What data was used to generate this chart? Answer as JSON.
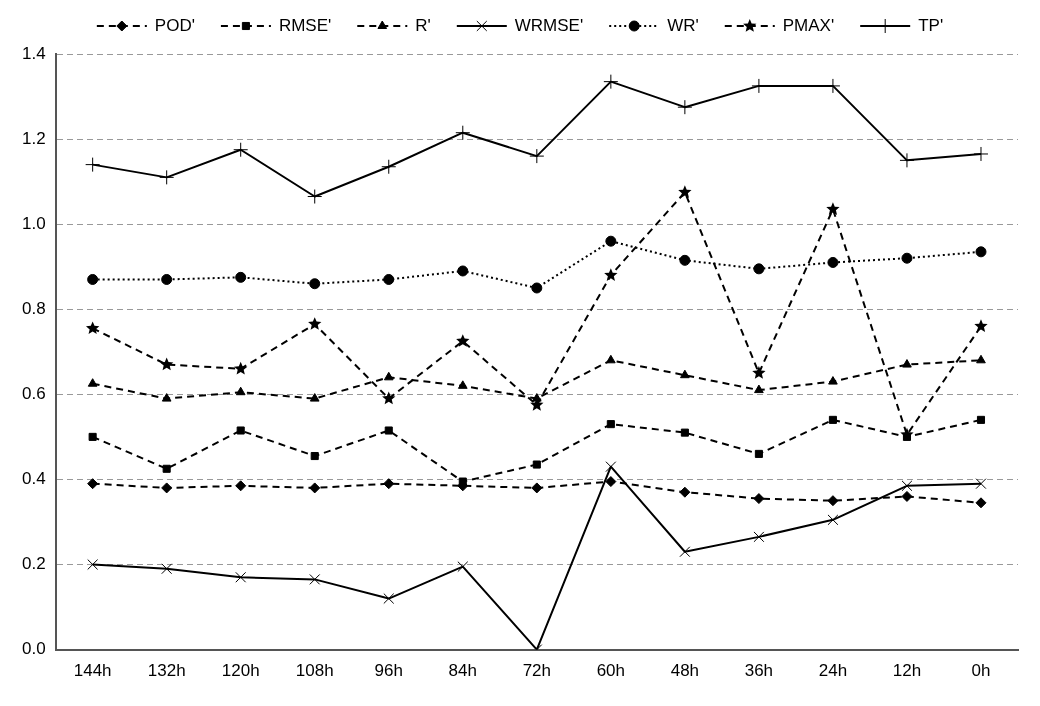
{
  "chart_data": {
    "type": "line",
    "categories": [
      "144h",
      "132h",
      "120h",
      "108h",
      "96h",
      "84h",
      "72h",
      "60h",
      "48h",
      "36h",
      "24h",
      "12h",
      "0h"
    ],
    "series": [
      {
        "name": "POD'",
        "color": "#000000",
        "marker": "diamond",
        "line_style": "dashed",
        "values": [
          0.39,
          0.38,
          0.385,
          0.38,
          0.39,
          0.385,
          0.38,
          0.395,
          0.37,
          0.355,
          0.35,
          0.36,
          0.345
        ]
      },
      {
        "name": "RMSE'",
        "color": "#000000",
        "marker": "square",
        "line_style": "dashed",
        "values": [
          0.5,
          0.425,
          0.515,
          0.455,
          0.515,
          0.395,
          0.435,
          0.53,
          0.51,
          0.46,
          0.54,
          0.5,
          0.54
        ]
      },
      {
        "name": "R'",
        "color": "#000000",
        "marker": "triangle",
        "line_style": "dashed",
        "values": [
          0.625,
          0.59,
          0.605,
          0.59,
          0.64,
          0.62,
          0.59,
          0.68,
          0.645,
          0.61,
          0.63,
          0.67,
          0.68
        ]
      },
      {
        "name": "WRMSE'",
        "color": "#000000",
        "marker": "cross",
        "line_style": "solid",
        "values": [
          0.2,
          0.19,
          0.17,
          0.165,
          0.12,
          0.195,
          0,
          0.43,
          0.23,
          0.265,
          0.305,
          0.385,
          0.39
        ]
      },
      {
        "name": "WR'",
        "color": "#000000",
        "marker": "circle",
        "line_style": "dotted",
        "values": [
          0.87,
          0.87,
          0.875,
          0.86,
          0.87,
          0.89,
          0.85,
          0.96,
          0.915,
          0.895,
          0.91,
          0.92,
          0.935
        ]
      },
      {
        "name": "PMAX'",
        "color": "#000000",
        "marker": "star",
        "line_style": "dashed",
        "values": [
          0.755,
          0.67,
          0.66,
          0.765,
          0.59,
          0.725,
          0.575,
          0.88,
          1.075,
          0.65,
          1.035,
          0.505,
          0.76
        ]
      },
      {
        "name": "TP'",
        "color": "#000000",
        "marker": "plus",
        "line_style": "solid",
        "values": [
          1.14,
          1.11,
          1.175,
          1.065,
          1.135,
          1.215,
          1.16,
          1.335,
          1.275,
          1.325,
          1.325,
          1.15,
          1.165
        ]
      }
    ],
    "ylim": [
      0,
      1.4
    ],
    "yticks": [
      {
        "value": 0,
        "label": "0.0"
      },
      {
        "value": 0.2,
        "label": "0.2"
      },
      {
        "value": 0.4,
        "label": "0.4"
      },
      {
        "value": 0.6,
        "label": "0.6"
      },
      {
        "value": 0.8,
        "label": "0.8"
      },
      {
        "value": 1.0,
        "label": "1.0"
      },
      {
        "value": 1.2,
        "label": "1.2"
      },
      {
        "value": 1.4,
        "label": "1.4"
      }
    ],
    "grid": "y",
    "legend": "top"
  }
}
